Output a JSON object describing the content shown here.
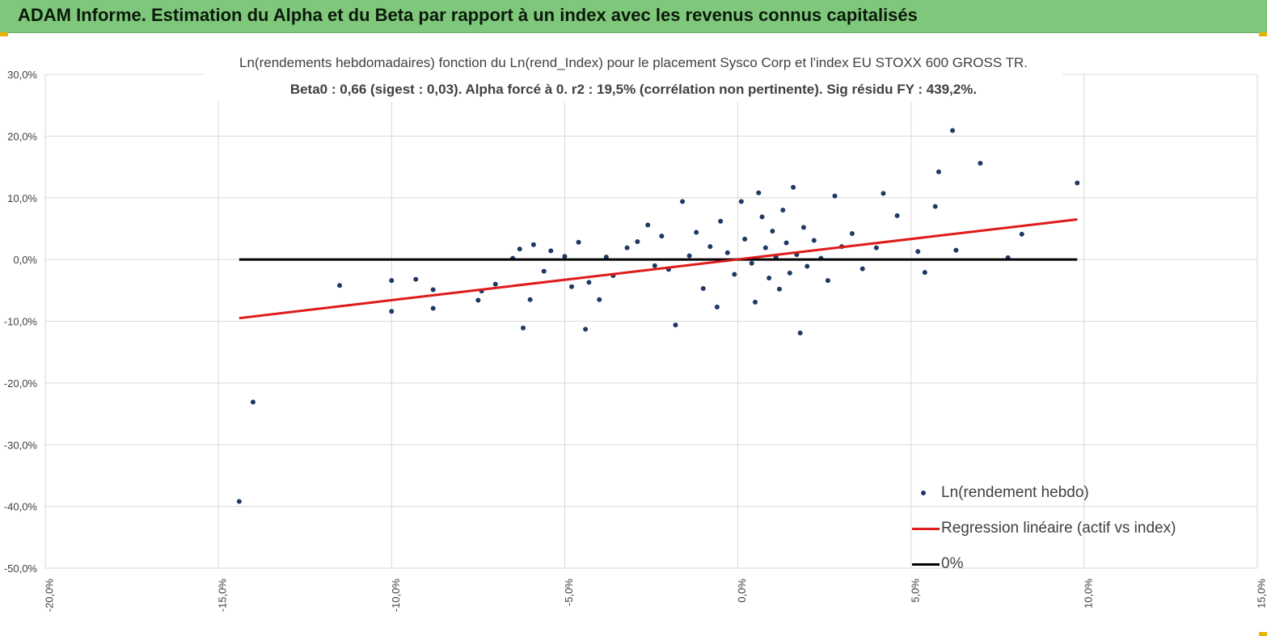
{
  "header": {
    "title": "ADAM Informe. Estimation du Alpha et du Beta par rapport à un index avec les revenus connus capitalisés"
  },
  "colors": {
    "header_bg": "#7ec77b",
    "points": "#1f3864",
    "regression": "#e01b1b",
    "zero_line": "#000000",
    "grid": "#d9d9d9"
  },
  "chart_data": {
    "type": "scatter",
    "title": "Ln(rendements hebdomadaires) fonction du Ln(rend_Index) pour le placement Sysco Corp et l'index EU STOXX 600 GROSS TR.",
    "subtitle": "Beta0 : 0,66 (sigest : 0,03). Alpha forcé à 0. r2 : 19,5% (corrélation non pertinente). Sig résidu FY : 439,2%.",
    "xlim": [
      -20,
      15
    ],
    "ylim": [
      -50,
      30
    ],
    "x_ticks": [
      "-20,0%",
      "-15,0%",
      "-10,0%",
      "-5,0%",
      "0,0%",
      "5,0%",
      "10,0%",
      "15,0%"
    ],
    "y_ticks": [
      "30,0%",
      "20,0%",
      "10,0%",
      "0,0%",
      "-10,0%",
      "-20,0%",
      "-30,0%",
      "-40,0%",
      "-50,0%"
    ],
    "grid": true,
    "legend_position": "bottom-right",
    "series": [
      {
        "name": "Ln(rendement hebdo)",
        "kind": "points",
        "points": [
          [
            -14.4,
            -39.2
          ],
          [
            -14.0,
            -23.1
          ],
          [
            -11.5,
            -4.2
          ],
          [
            -10.0,
            -3.4
          ],
          [
            -10.0,
            -8.4
          ],
          [
            -9.3,
            -3.2
          ],
          [
            -8.8,
            -4.9
          ],
          [
            -8.8,
            -7.9
          ],
          [
            -7.5,
            -6.6
          ],
          [
            -7.4,
            -5.1
          ],
          [
            -7.0,
            -4.0
          ],
          [
            -6.5,
            0.2
          ],
          [
            -6.3,
            1.7
          ],
          [
            -6.2,
            -11.1
          ],
          [
            -6.0,
            -6.5
          ],
          [
            -5.9,
            2.4
          ],
          [
            -5.6,
            -1.9
          ],
          [
            -5.4,
            1.4
          ],
          [
            -5.0,
            0.5
          ],
          [
            -4.8,
            -4.4
          ],
          [
            -4.6,
            2.8
          ],
          [
            -4.4,
            -11.3
          ],
          [
            -4.3,
            -3.7
          ],
          [
            -4.0,
            -6.5
          ],
          [
            -3.8,
            0.4
          ],
          [
            -3.6,
            -2.6
          ],
          [
            -3.2,
            1.9
          ],
          [
            -2.9,
            2.9
          ],
          [
            -2.6,
            5.6
          ],
          [
            -2.4,
            -1.0
          ],
          [
            -2.2,
            3.8
          ],
          [
            -2.0,
            -1.6
          ],
          [
            -1.8,
            -10.6
          ],
          [
            -1.6,
            9.4
          ],
          [
            -1.4,
            0.6
          ],
          [
            -1.2,
            4.4
          ],
          [
            -1.0,
            -4.7
          ],
          [
            -0.8,
            2.1
          ],
          [
            -0.6,
            -7.7
          ],
          [
            -0.5,
            6.2
          ],
          [
            -0.3,
            1.1
          ],
          [
            -0.1,
            -2.4
          ],
          [
            0.1,
            9.4
          ],
          [
            0.2,
            3.3
          ],
          [
            0.4,
            -0.6
          ],
          [
            0.5,
            -6.9
          ],
          [
            0.6,
            10.8
          ],
          [
            0.7,
            6.9
          ],
          [
            0.8,
            1.9
          ],
          [
            0.9,
            -3.0
          ],
          [
            1.0,
            4.6
          ],
          [
            1.1,
            0.4
          ],
          [
            1.2,
            -4.8
          ],
          [
            1.3,
            8.0
          ],
          [
            1.4,
            2.7
          ],
          [
            1.5,
            -2.2
          ],
          [
            1.6,
            11.7
          ],
          [
            1.7,
            0.8
          ],
          [
            1.8,
            -11.9
          ],
          [
            1.9,
            5.2
          ],
          [
            2.0,
            -1.1
          ],
          [
            2.2,
            3.1
          ],
          [
            2.4,
            0.2
          ],
          [
            2.6,
            -3.4
          ],
          [
            2.8,
            10.3
          ],
          [
            3.0,
            2.1
          ],
          [
            3.3,
            4.2
          ],
          [
            3.6,
            -1.5
          ],
          [
            4.0,
            1.9
          ],
          [
            4.2,
            10.7
          ],
          [
            4.6,
            7.1
          ],
          [
            5.2,
            1.3
          ],
          [
            5.4,
            -2.1
          ],
          [
            5.7,
            8.6
          ],
          [
            5.8,
            14.2
          ],
          [
            6.2,
            20.9
          ],
          [
            6.3,
            1.5
          ],
          [
            7.0,
            15.6
          ],
          [
            7.8,
            0.3
          ],
          [
            8.2,
            4.1
          ],
          [
            9.8,
            12.4
          ]
        ]
      },
      {
        "name": "Regression linéaire (actif vs index)",
        "kind": "line",
        "x": [
          -14.4,
          9.8
        ],
        "y": [
          -9.5,
          6.5
        ]
      },
      {
        "name": "0%",
        "kind": "line",
        "x": [
          -14.4,
          9.8
        ],
        "y": [
          0,
          0
        ]
      }
    ]
  }
}
